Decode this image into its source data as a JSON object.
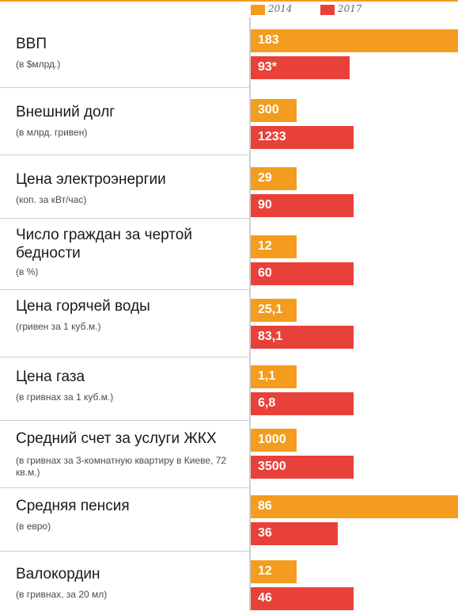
{
  "legend": [
    {
      "label": "2014",
      "color": "#f39c1f"
    },
    {
      "label": "2017",
      "color": "#e8413a"
    }
  ],
  "chart_data": {
    "type": "bar",
    "orientation": "horizontal",
    "series": [
      {
        "name": "2014",
        "color": "#f39c1f"
      },
      {
        "name": "2017",
        "color": "#e8413a"
      }
    ],
    "rows": [
      {
        "title": "ВВП",
        "subtitle": "(в $млрд.)",
        "values": [
          183,
          93
        ],
        "labels": [
          "183",
          "93*"
        ]
      },
      {
        "title": "Внешний долг",
        "subtitle": "(в млрд. гривен)",
        "values": [
          300,
          1233
        ],
        "labels": [
          "300",
          "1233"
        ]
      },
      {
        "title": "Цена электроэнергии",
        "subtitle": "(коп. за кВт/час)",
        "values": [
          29,
          90
        ],
        "labels": [
          "29",
          "90"
        ]
      },
      {
        "title": "Число граждан за чертой бедности",
        "subtitle": "(в %)",
        "values": [
          12,
          60
        ],
        "labels": [
          "12",
          "60"
        ]
      },
      {
        "title": "Цена горячей воды",
        "subtitle": "(гривен за 1 куб.м.)",
        "values": [
          25.1,
          83.1
        ],
        "labels": [
          "25,1",
          "83,1"
        ]
      },
      {
        "title": "Цена газа",
        "subtitle": "(в гривнах за 1 куб.м.)",
        "values": [
          1.1,
          6.8
        ],
        "labels": [
          "1,1",
          "6,8"
        ]
      },
      {
        "title": "Средний счет за услуги ЖКХ",
        "subtitle": "(в гривнах за 3-комнатную квартиру в Киеве, 72 кв.м.)",
        "values": [
          1000,
          3500
        ],
        "labels": [
          "1000",
          "3500"
        ]
      },
      {
        "title": "Средняя пенсия",
        "subtitle": "(в евро)",
        "values": [
          86,
          36
        ],
        "labels": [
          "86",
          "36"
        ]
      },
      {
        "title": "Валокордин",
        "subtitle": "(в гривнах, за 20 мл)",
        "values": [
          12,
          46
        ],
        "labels": [
          "12",
          "46"
        ]
      }
    ]
  }
}
